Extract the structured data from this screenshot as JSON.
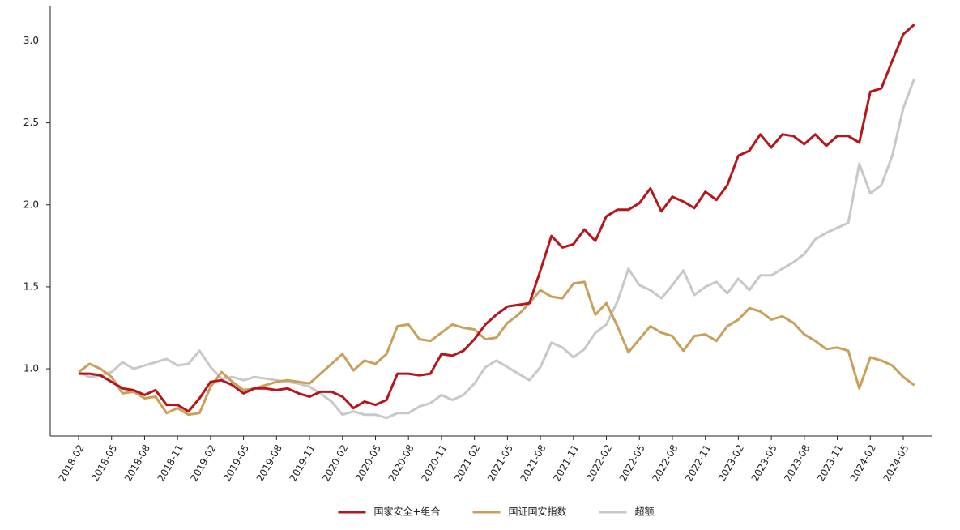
{
  "chart_data": {
    "type": "line",
    "categories": [
      "2018-02",
      null,
      null,
      "2018-05",
      null,
      null,
      "2018-08",
      null,
      null,
      "2018-11",
      null,
      null,
      "2019-02",
      null,
      null,
      "2019-05",
      null,
      null,
      "2019-08",
      null,
      null,
      "2019-11",
      null,
      null,
      "2020-02",
      null,
      null,
      "2020-05",
      null,
      null,
      "2020-08",
      null,
      null,
      "2020-11",
      null,
      null,
      "2021-02",
      null,
      null,
      "2021-05",
      null,
      null,
      "2021-08",
      null,
      null,
      "2021-11",
      null,
      null,
      "2022-02",
      null,
      null,
      "2022-05",
      null,
      null,
      "2022-08",
      null,
      null,
      "2022-11",
      null,
      null,
      "2023-02",
      null,
      null,
      "2023-05",
      null,
      null,
      "2023-08",
      null,
      null,
      "2023-11",
      null,
      null,
      "2024-02",
      null,
      null,
      "2024-05",
      null
    ],
    "series": [
      {
        "name": "国家安全+组合",
        "color": "#b5161c",
        "values": [
          0.97,
          0.97,
          0.96,
          0.92,
          0.88,
          0.87,
          0.84,
          0.87,
          0.78,
          0.78,
          0.74,
          0.82,
          0.92,
          0.93,
          0.9,
          0.85,
          0.88,
          0.88,
          0.87,
          0.88,
          0.85,
          0.83,
          0.86,
          0.86,
          0.83,
          0.76,
          0.8,
          0.78,
          0.81,
          0.97,
          0.97,
          0.96,
          0.97,
          1.09,
          1.08,
          1.11,
          1.18,
          1.27,
          1.33,
          1.38,
          1.39,
          1.4,
          1.6,
          1.81,
          1.74,
          1.76,
          1.85,
          1.78,
          1.93,
          1.97,
          1.97,
          2.01,
          2.1,
          1.96,
          2.05,
          2.02,
          1.98,
          2.08,
          2.03,
          2.12,
          2.3,
          2.33,
          2.43,
          2.35,
          2.43,
          2.42,
          2.37,
          2.43,
          2.36,
          2.42,
          2.42,
          2.38,
          2.69,
          2.71,
          2.88,
          3.04,
          3.1
        ]
      },
      {
        "name": "国证国安指数",
        "color": "#c9a05a",
        "values": [
          0.98,
          1.03,
          1.0,
          0.95,
          0.85,
          0.86,
          0.82,
          0.83,
          0.73,
          0.76,
          0.72,
          0.73,
          0.89,
          0.98,
          0.92,
          0.87,
          0.88,
          0.9,
          0.92,
          0.93,
          0.92,
          0.91,
          0.97,
          1.03,
          1.09,
          0.99,
          1.05,
          1.03,
          1.09,
          1.26,
          1.27,
          1.18,
          1.17,
          1.22,
          1.27,
          1.25,
          1.24,
          1.18,
          1.19,
          1.28,
          1.33,
          1.4,
          1.48,
          1.44,
          1.43,
          1.52,
          1.53,
          1.33,
          1.4,
          1.26,
          1.1,
          1.18,
          1.26,
          1.22,
          1.2,
          1.11,
          1.2,
          1.21,
          1.17,
          1.26,
          1.3,
          1.37,
          1.35,
          1.3,
          1.32,
          1.28,
          1.21,
          1.17,
          1.12,
          1.13,
          1.11,
          0.88,
          1.07,
          1.05,
          1.02,
          0.95,
          0.9
        ]
      },
      {
        "name": "超额",
        "color": "#c8c8c8",
        "values": [
          0.98,
          0.95,
          0.96,
          0.98,
          1.04,
          1.0,
          1.02,
          1.04,
          1.06,
          1.02,
          1.03,
          1.11,
          1.01,
          0.94,
          0.95,
          0.93,
          0.95,
          0.94,
          0.93,
          0.92,
          0.91,
          0.89,
          0.85,
          0.8,
          0.72,
          0.74,
          0.72,
          0.72,
          0.7,
          0.73,
          0.73,
          0.77,
          0.79,
          0.84,
          0.81,
          0.84,
          0.91,
          1.01,
          1.05,
          1.01,
          0.97,
          0.93,
          1.01,
          1.16,
          1.13,
          1.07,
          1.12,
          1.22,
          1.27,
          1.41,
          1.61,
          1.51,
          1.48,
          1.43,
          1.51,
          1.6,
          1.45,
          1.5,
          1.53,
          1.46,
          1.55,
          1.48,
          1.57,
          1.57,
          1.61,
          1.65,
          1.7,
          1.79,
          1.83,
          1.86,
          1.89,
          2.25,
          2.07,
          2.12,
          2.3,
          2.59,
          2.77
        ]
      }
    ],
    "ylim": [
      0.59,
      3.21
    ],
    "yticks": [
      {
        "value": 1,
        "label": "1.0"
      },
      {
        "value": 1.5,
        "label": "1.5"
      },
      {
        "value": 2,
        "label": "2.0"
      },
      {
        "value": 2.5,
        "label": "2.5"
      },
      {
        "value": 3,
        "label": "3.0"
      }
    ],
    "grid": false,
    "legend": "bottom"
  }
}
